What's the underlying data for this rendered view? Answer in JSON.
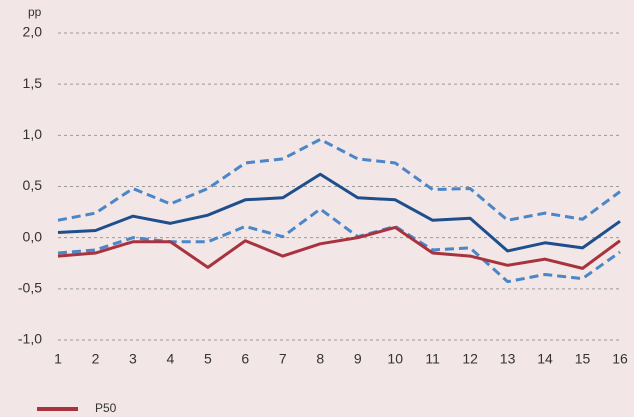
{
  "chart_data": {
    "type": "line",
    "y_label": "pp",
    "x": [
      1,
      2,
      3,
      4,
      5,
      6,
      7,
      8,
      9,
      10,
      11,
      12,
      13,
      14,
      15,
      16
    ],
    "xlim": [
      1,
      16
    ],
    "xticks": [
      1,
      2,
      3,
      4,
      5,
      6,
      7,
      8,
      9,
      10,
      11,
      12,
      13,
      14,
      15,
      16
    ],
    "ylim": [
      -1,
      2
    ],
    "yticks": [
      {
        "value": -1,
        "label": "-1,0"
      },
      {
        "value": -0.5,
        "label": "-0,5"
      },
      {
        "value": 0,
        "label": "0,0"
      },
      {
        "value": 0.5,
        "label": "0,5"
      },
      {
        "value": 1,
        "label": "1,0"
      },
      {
        "value": 1.5,
        "label": "1,5"
      },
      {
        "value": 2,
        "label": "2,0"
      }
    ],
    "grid": true,
    "legend": "bottom-left",
    "series": [
      {
        "color": "#4a86c8",
        "dashed": true,
        "values": [
          0.17,
          0.24,
          0.48,
          0.33,
          0.48,
          0.73,
          0.77,
          0.96,
          0.77,
          0.73,
          0.47,
          0.48,
          0.17,
          0.24,
          0.18,
          0.45
        ]
      },
      {
        "color": "#1f4e8c",
        "dashed": false,
        "values": [
          0.05,
          0.07,
          0.21,
          0.14,
          0.22,
          0.37,
          0.39,
          0.62,
          0.39,
          0.37,
          0.17,
          0.19,
          -0.13,
          -0.05,
          -0.1,
          0.16
        ]
      },
      {
        "color": "#4a86c8",
        "dashed": true,
        "values": [
          -0.15,
          -0.12,
          0.0,
          -0.04,
          -0.04,
          0.11,
          0.01,
          0.28,
          0.01,
          0.11,
          -0.12,
          -0.1,
          -0.43,
          -0.36,
          -0.4,
          -0.14
        ]
      },
      {
        "name": "P50",
        "color": "#a8323e",
        "dashed": false,
        "values": [
          -0.18,
          -0.15,
          -0.04,
          -0.04,
          -0.29,
          -0.03,
          -0.18,
          -0.06,
          0.0,
          0.1,
          -0.15,
          -0.18,
          -0.27,
          -0.21,
          -0.3,
          -0.03
        ]
      }
    ]
  }
}
